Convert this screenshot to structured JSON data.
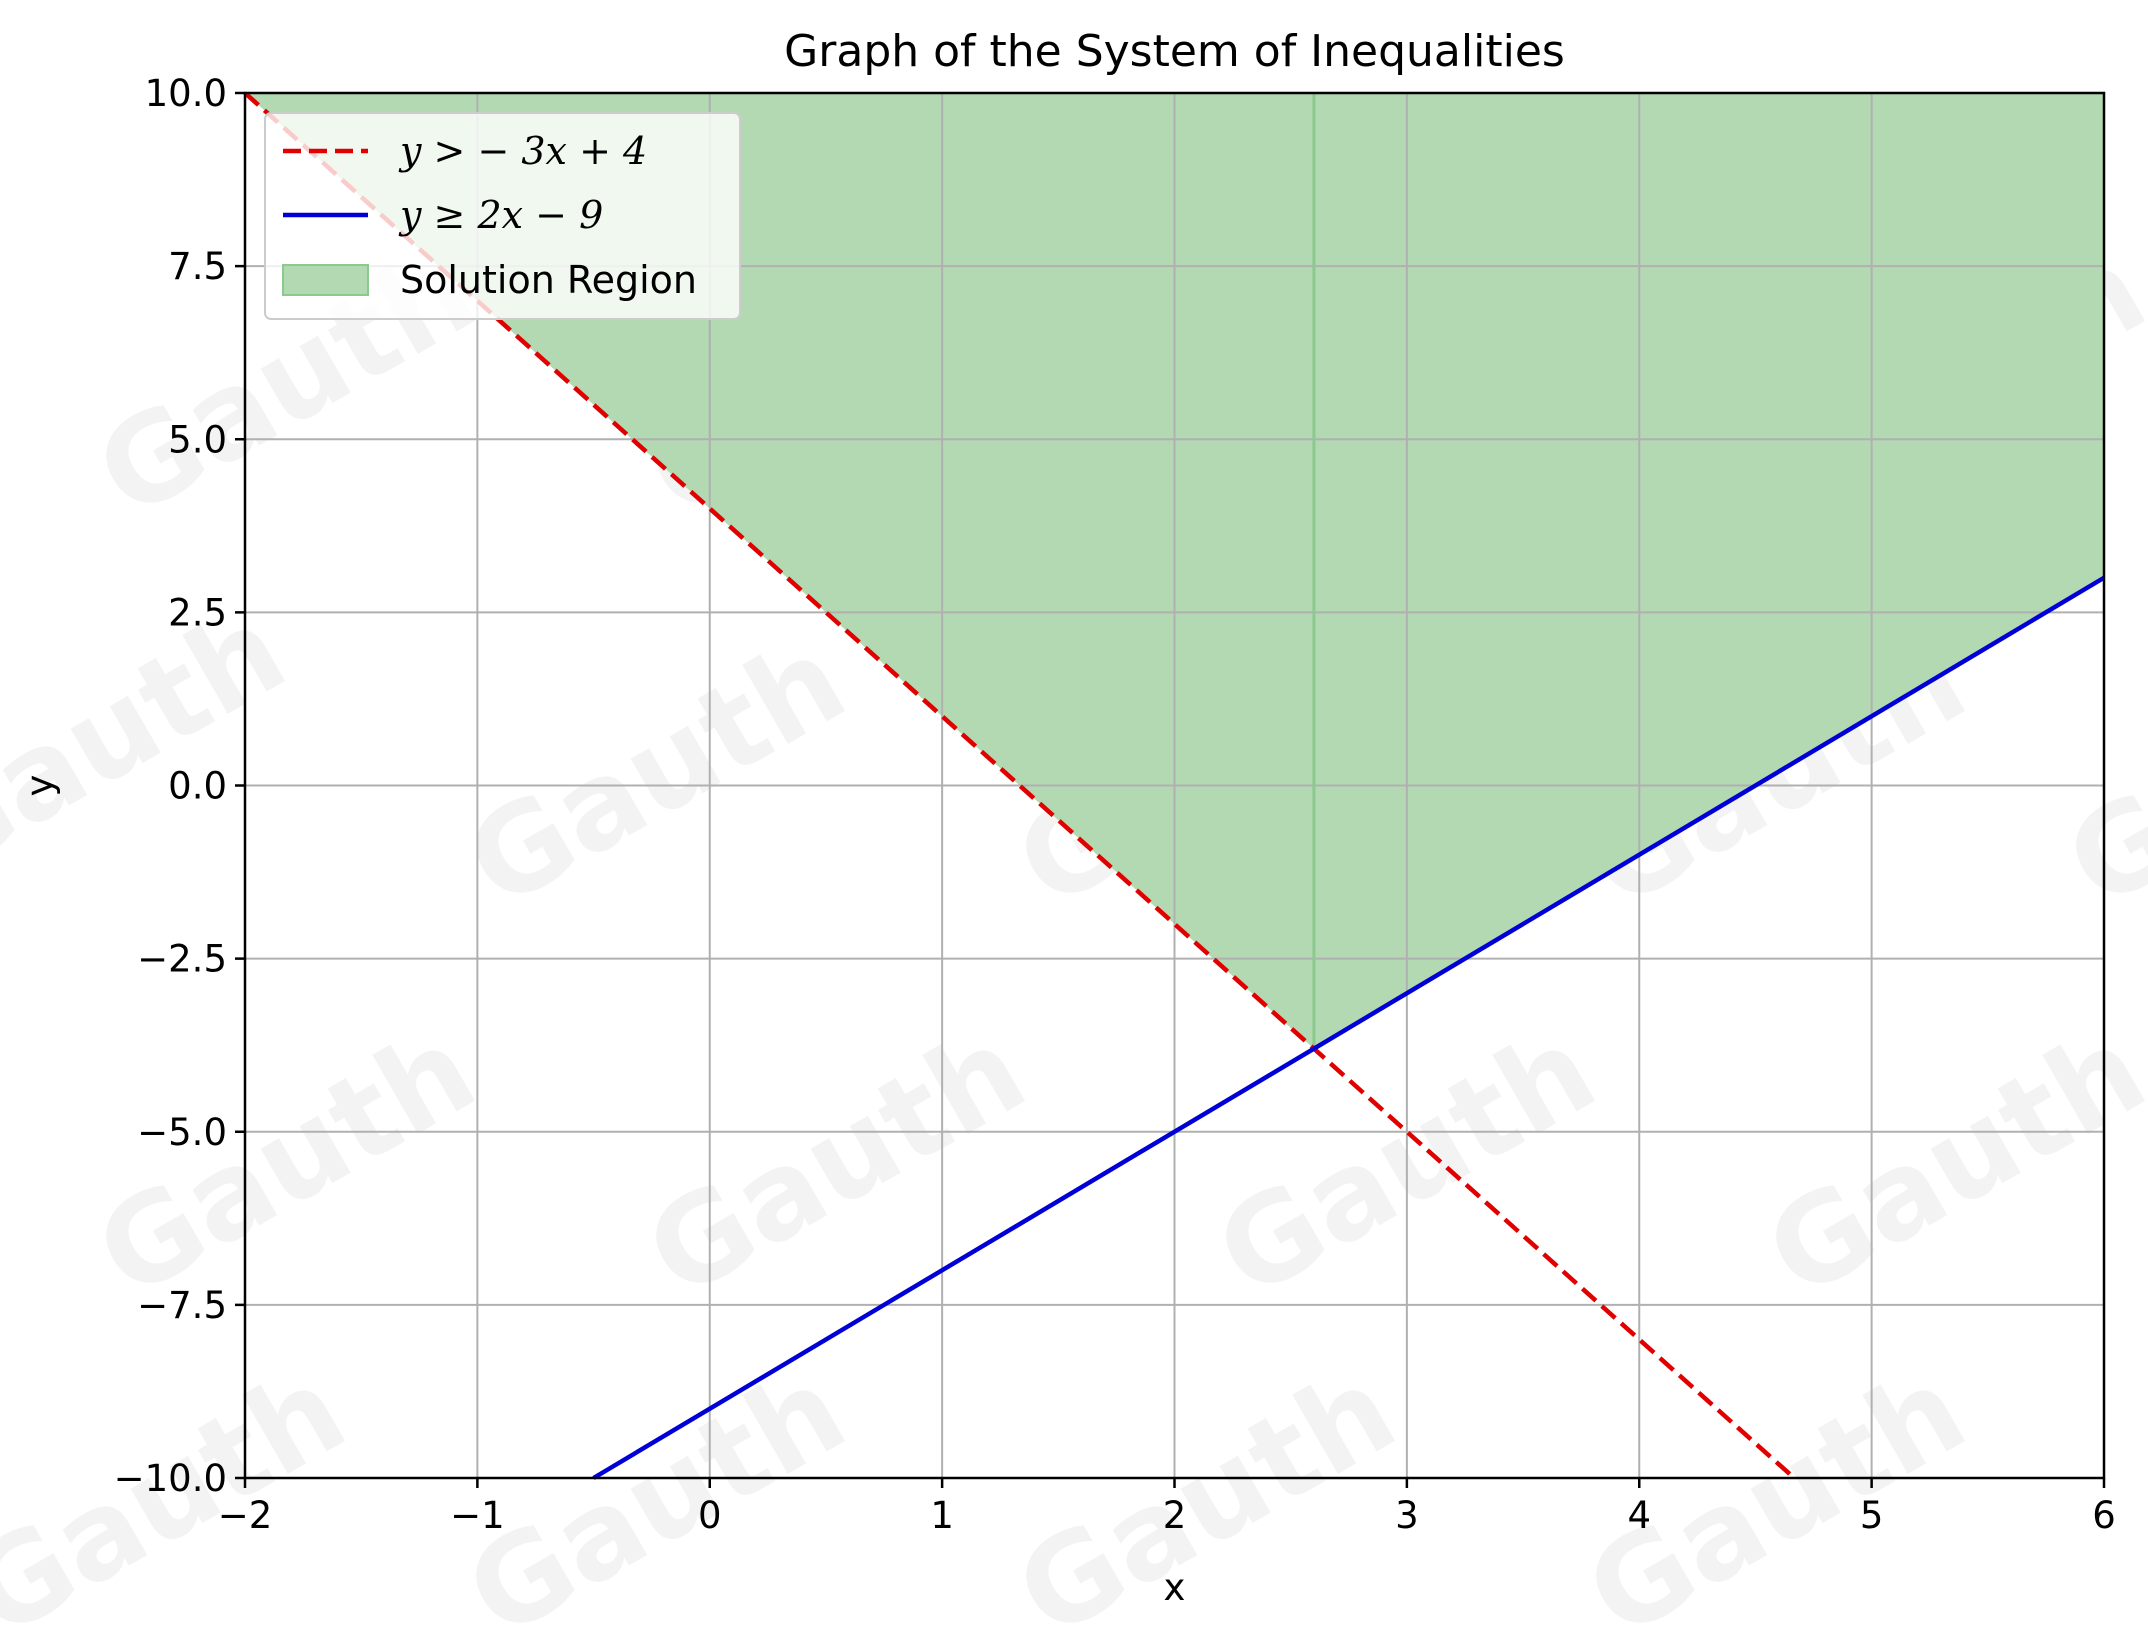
{
  "chart_data": {
    "type": "line",
    "title": "Graph of the System of Inequalities",
    "xlabel": "x",
    "ylabel": "y",
    "xlim": [
      -2,
      6
    ],
    "ylim": [
      -10,
      10
    ],
    "x_ticks": [
      -2,
      -1,
      0,
      1,
      2,
      3,
      4,
      5,
      6
    ],
    "x_tick_labels": [
      "−2",
      "−1",
      "0",
      "1",
      "2",
      "3",
      "4",
      "5",
      "6"
    ],
    "y_ticks": [
      -10,
      -7.5,
      -5,
      -2.5,
      0,
      2.5,
      5,
      7.5,
      10
    ],
    "y_tick_labels": [
      "−10.0",
      "−7.5",
      "−5.0",
      "−2.5",
      "0.0",
      "2.5",
      "5.0",
      "7.5",
      "10.0"
    ],
    "grid": true,
    "legend_position": "top-left",
    "series": [
      {
        "name": "y > − 3x + 4",
        "slope": -3,
        "intercept": 4,
        "style": "dashed",
        "color": "#e00000",
        "x": [
          -2,
          4.6667
        ],
        "y": [
          10,
          -10
        ]
      },
      {
        "name": "y ≥ 2x − 9",
        "slope": 2,
        "intercept": -9,
        "style": "solid",
        "color": "#0000d6",
        "x": [
          -0.5,
          6
        ],
        "y": [
          -10,
          3
        ]
      }
    ],
    "region": {
      "name": "Solution Region",
      "color": "#b3d9b3",
      "x": [
        -2,
        2.6,
        6,
        6,
        -2
      ],
      "y": [
        10,
        -3.8,
        3,
        10,
        10
      ]
    },
    "watermark": "Gauth"
  }
}
